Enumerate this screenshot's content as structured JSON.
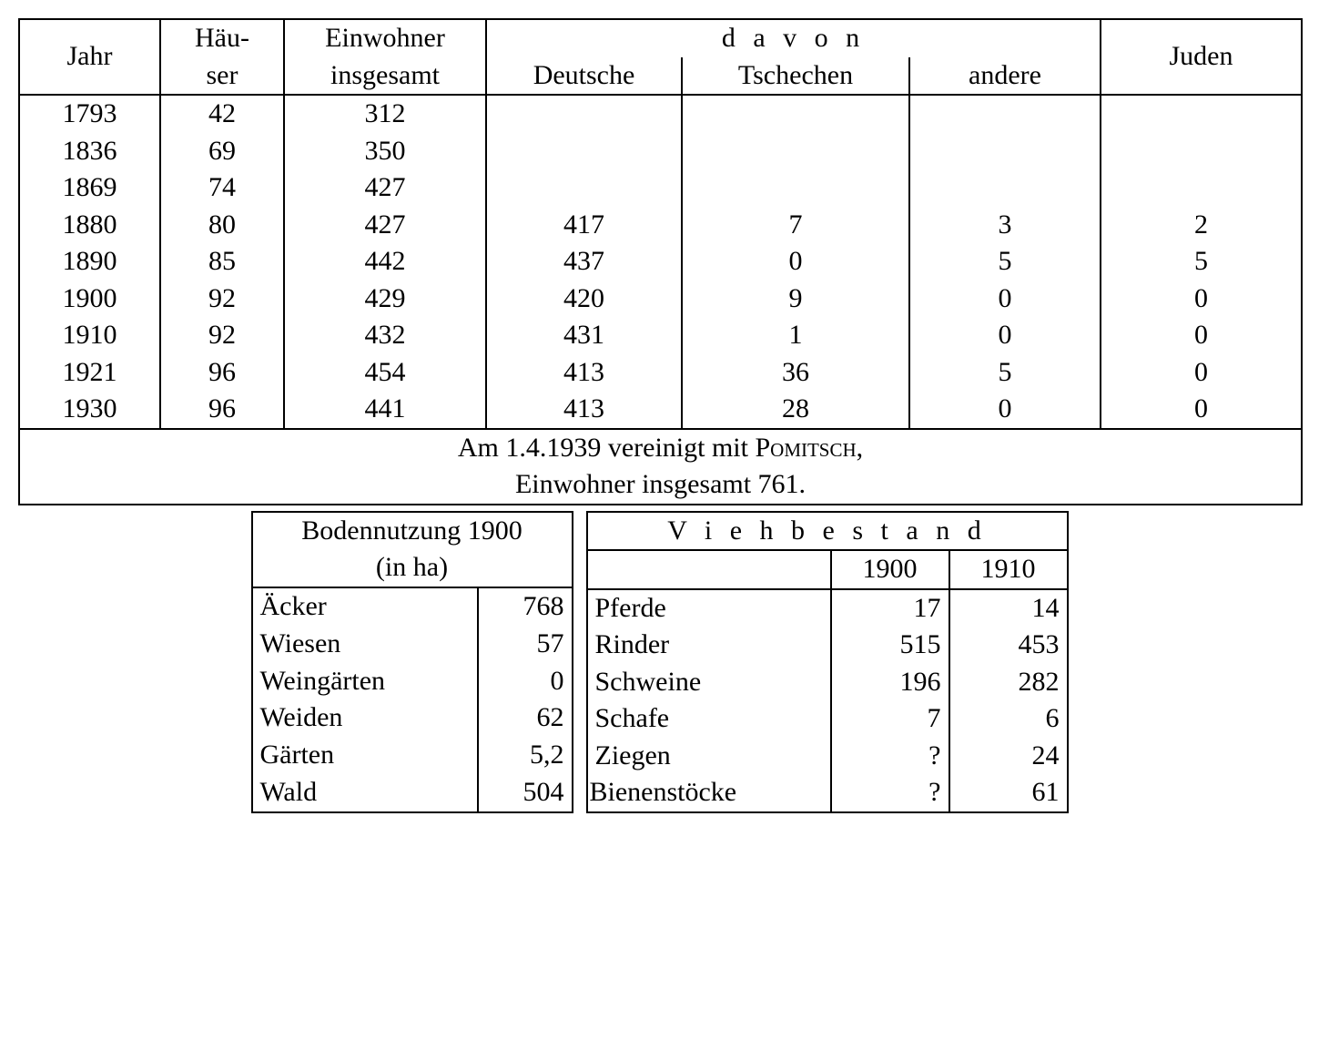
{
  "population": {
    "columns": {
      "jahr": "Jahr",
      "haeuser_1": "Häu-",
      "haeuser_2": "ser",
      "einwohner_1": "Einwohner",
      "einwohner_2": "insgesamt",
      "davon": "d a v o n",
      "deutsche": "Deutsche",
      "tschechen": "Tschechen",
      "andere": "andere",
      "juden": "Juden"
    },
    "rows": [
      {
        "jahr": "1793",
        "haeuser": "42",
        "einwohner": "312",
        "deutsche": "",
        "tschechen": "",
        "andere": "",
        "juden": ""
      },
      {
        "jahr": "1836",
        "haeuser": "69",
        "einwohner": "350",
        "deutsche": "",
        "tschechen": "",
        "andere": "",
        "juden": ""
      },
      {
        "jahr": "1869",
        "haeuser": "74",
        "einwohner": "427",
        "deutsche": "",
        "tschechen": "",
        "andere": "",
        "juden": ""
      },
      {
        "jahr": "1880",
        "haeuser": "80",
        "einwohner": "427",
        "deutsche": "417",
        "tschechen": "7",
        "andere": "3",
        "juden": "2"
      },
      {
        "jahr": "1890",
        "haeuser": "85",
        "einwohner": "442",
        "deutsche": "437",
        "tschechen": "0",
        "andere": "5",
        "juden": "5"
      },
      {
        "jahr": "1900",
        "haeuser": "92",
        "einwohner": "429",
        "deutsche": "420",
        "tschechen": "9",
        "andere": "0",
        "juden": "0"
      },
      {
        "jahr": "1910",
        "haeuser": "92",
        "einwohner": "432",
        "deutsche": "431",
        "tschechen": "1",
        "andere": "0",
        "juden": "0"
      },
      {
        "jahr": "1921",
        "haeuser": "96",
        "einwohner": "454",
        "deutsche": "413",
        "tschechen": "36",
        "andere": "5",
        "juden": "0"
      },
      {
        "jahr": "1930",
        "haeuser": "96",
        "einwohner": "441",
        "deutsche": "413",
        "tschechen": "28",
        "andere": "0",
        "juden": "0"
      }
    ],
    "footnote_1a": "Am 1.4.1939 vereinigt mit ",
    "footnote_1b": "Pomitsch",
    "footnote_1c": ",",
    "footnote_2": "Einwohner insgesamt  761."
  },
  "land_use": {
    "title_1": "Bodennutzung 1900",
    "title_2": "(in ha)",
    "rows": [
      {
        "name": "Äcker",
        "value": "768"
      },
      {
        "name": "Wiesen",
        "value": "57"
      },
      {
        "name": "Weingärten",
        "value": "0"
      },
      {
        "name": "Weiden",
        "value": "62"
      },
      {
        "name": "Gärten",
        "value": "5,2"
      },
      {
        "name": "Wald",
        "value": "504"
      }
    ]
  },
  "livestock": {
    "title": "V i e h b e s t a n d",
    "year1": "1900",
    "year2": "1910",
    "rows": [
      {
        "name": "Pferde",
        "y1": "17",
        "y2": "14"
      },
      {
        "name": "Rinder",
        "y1": "515",
        "y2": "453"
      },
      {
        "name": "Schweine",
        "y1": "196",
        "y2": "282"
      },
      {
        "name": "Schafe",
        "y1": "7",
        "y2": "6"
      },
      {
        "name": "Ziegen",
        "y1": "?",
        "y2": "24"
      },
      {
        "name": "Bienenstöcke",
        "y1": "?",
        "y2": "61"
      }
    ]
  }
}
